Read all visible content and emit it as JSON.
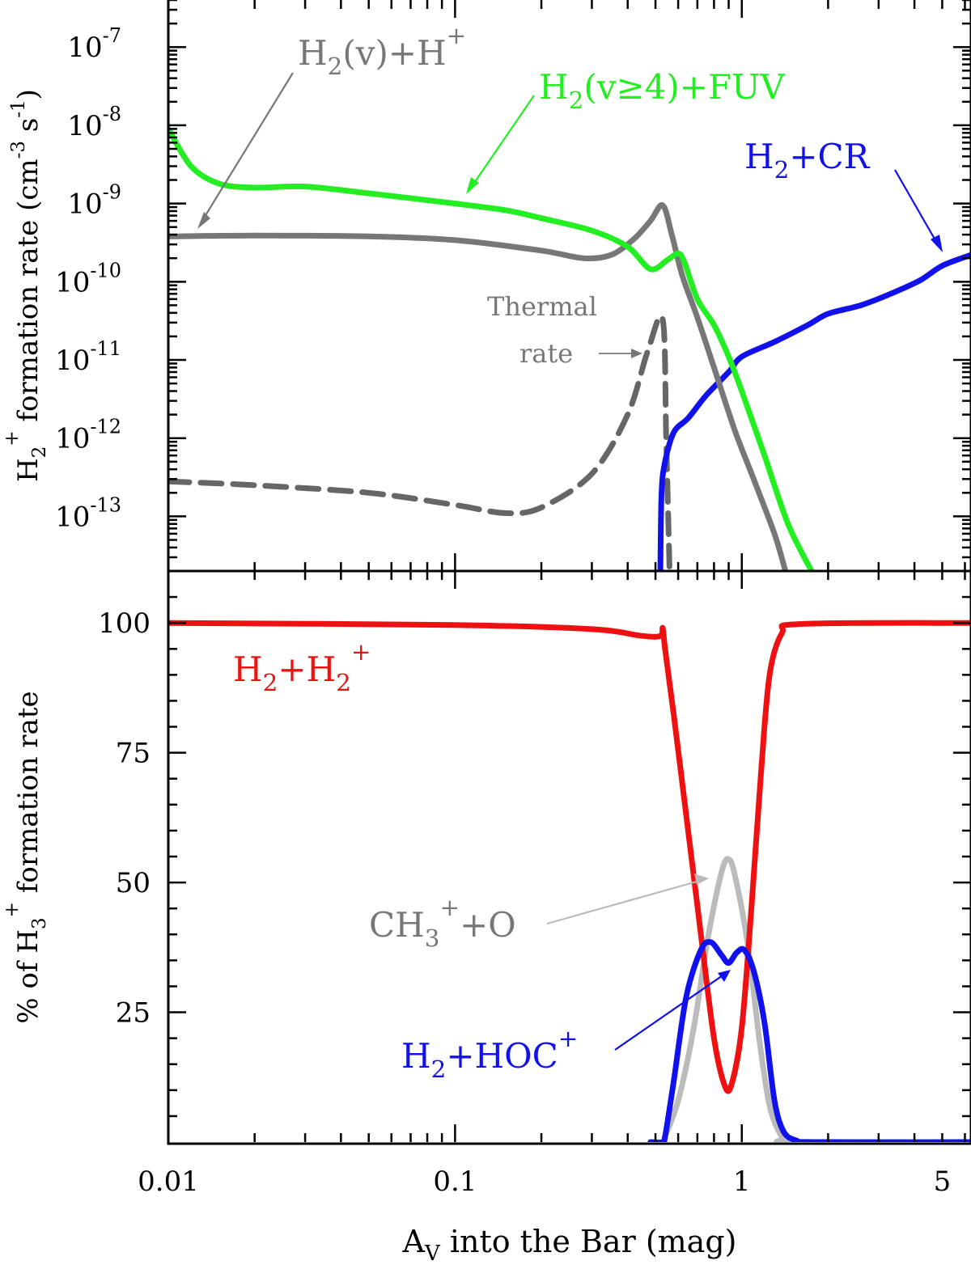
{
  "chart_data": [
    {
      "panel": "top",
      "type": "line",
      "ylabel_parts": [
        "H",
        "2",
        "+",
        " formation rate (cm",
        "-3",
        " s",
        "-1",
        ")"
      ],
      "yscale": "log",
      "ylim": [
        2e-14,
        4e-07
      ],
      "xscale": "log",
      "xlim": [
        0.01,
        6.3
      ],
      "ytick_exponents": [
        "-7",
        "-8",
        "-9",
        "-10",
        "-11",
        "-12",
        "-13"
      ],
      "ytick_values": [
        1e-07,
        1e-08,
        1e-09,
        1e-10,
        1e-11,
        1e-12,
        1e-13
      ],
      "series": [
        {
          "key": "h2v_hplus",
          "color": "#777777",
          "dash": "solid",
          "points": [
            [
              0.01,
              3.8e-10
            ],
            [
              0.02,
              3.9e-10
            ],
            [
              0.05,
              3.8e-10
            ],
            [
              0.1,
              3.4e-10
            ],
            [
              0.2,
              2.5e-10
            ],
            [
              0.28,
              2e-10
            ],
            [
              0.35,
              2.2e-10
            ],
            [
              0.42,
              3.5e-10
            ],
            [
              0.48,
              6e-10
            ],
            [
              0.53,
              9.5e-10
            ],
            [
              0.57,
              4e-10
            ],
            [
              0.62,
              1.2e-10
            ],
            [
              0.7,
              3.5e-11
            ],
            [
              0.8,
              8e-12
            ],
            [
              0.95,
              1.2e-12
            ],
            [
              1.1,
              3e-13
            ],
            [
              1.3,
              6e-14
            ],
            [
              1.42,
              2e-14
            ]
          ]
        },
        {
          "key": "h2v4_fuv",
          "color": "#22ee22",
          "dash": "solid",
          "points": [
            [
              0.01,
              9e-09
            ],
            [
              0.012,
              3e-09
            ],
            [
              0.015,
              1.8e-09
            ],
            [
              0.02,
              1.6e-09
            ],
            [
              0.03,
              1.65e-09
            ],
            [
              0.05,
              1.35e-09
            ],
            [
              0.1,
              1e-09
            ],
            [
              0.15,
              8.2e-10
            ],
            [
              0.2,
              6.5e-10
            ],
            [
              0.3,
              4.5e-10
            ],
            [
              0.4,
              2.8e-10
            ],
            [
              0.48,
              1.45e-10
            ],
            [
              0.55,
              1.9e-10
            ],
            [
              0.6,
              2.3e-10
            ],
            [
              0.63,
              1.8e-10
            ],
            [
              0.7,
              6e-11
            ],
            [
              0.8,
              2.8e-11
            ],
            [
              0.9,
              1.1e-11
            ],
            [
              1.0,
              4e-12
            ],
            [
              1.2,
              6e-13
            ],
            [
              1.45,
              8e-14
            ],
            [
              1.75,
              2e-14
            ]
          ]
        },
        {
          "key": "h2_cr",
          "color": "#1111ee",
          "dash": "solid",
          "points": [
            [
              0.52,
              2e-14
            ],
            [
              0.525,
              2e-13
            ],
            [
              0.54,
              5e-13
            ],
            [
              0.58,
              1.2e-12
            ],
            [
              0.65,
              1.8e-12
            ],
            [
              0.75,
              3.5e-12
            ],
            [
              0.9,
              7e-12
            ],
            [
              1.0,
              1.1e-11
            ],
            [
              1.3,
              1.7e-11
            ],
            [
              1.7,
              2.8e-11
            ],
            [
              2.0,
              3.9e-11
            ],
            [
              2.6,
              5e-11
            ],
            [
              3.3,
              7e-11
            ],
            [
              4.2,
              1.05e-10
            ],
            [
              5.0,
              1.6e-10
            ],
            [
              6.3,
              2.2e-10
            ]
          ]
        },
        {
          "key": "thermal",
          "color": "#666666",
          "dash": "dashed",
          "points": [
            [
              0.01,
              2.8e-13
            ],
            [
              0.02,
              2.5e-13
            ],
            [
              0.05,
              2e-13
            ],
            [
              0.1,
              1.4e-13
            ],
            [
              0.15,
              1.1e-13
            ],
            [
              0.2,
              1.3e-13
            ],
            [
              0.3,
              3.5e-13
            ],
            [
              0.4,
              2e-12
            ],
            [
              0.47,
              1.3e-11
            ],
            [
              0.53,
              3.3e-11
            ],
            [
              0.545,
              1e-12
            ],
            [
              0.56,
              2e-14
            ]
          ]
        }
      ],
      "annotations": [
        {
          "key": "h2v_hplus",
          "color": "#777777",
          "parts": [
            "H",
            "2",
            "(v)+H",
            "+"
          ]
        },
        {
          "key": "h2v4_fuv",
          "color": "#22ee22",
          "parts": [
            "H",
            "2",
            "(v≥4)+FUV"
          ]
        },
        {
          "key": "h2_cr",
          "color": "#1111ee",
          "parts": [
            "H",
            "2",
            "+CR"
          ]
        },
        {
          "key": "thermal1",
          "color": "#777777",
          "text": "Thermal"
        },
        {
          "key": "thermal2",
          "color": "#777777",
          "text": "rate"
        }
      ]
    },
    {
      "panel": "bottom",
      "type": "line",
      "ylabel_parts": [
        "% of H",
        "3",
        "+",
        " formation rate"
      ],
      "yscale": "linear",
      "ylim": [
        0,
        110
      ],
      "xscale": "log",
      "xlim": [
        0.01,
        6.3
      ],
      "ytick_labels": [
        "100",
        "75",
        "50",
        "25"
      ],
      "ytick_values": [
        100,
        75,
        50,
        25
      ],
      "xlabel_parts": [
        "A",
        "V",
        " into the Bar (mag)"
      ],
      "xtick_labels": [
        "0.01",
        "0.1",
        "1",
        "5"
      ],
      "xtick_values": [
        0.01,
        0.1,
        1,
        5
      ],
      "series": [
        {
          "key": "h2_h2plus",
          "color": "#ee1111",
          "points": [
            [
              0.01,
              100
            ],
            [
              0.1,
              99.6
            ],
            [
              0.3,
              98.8
            ],
            [
              0.45,
              97.5
            ],
            [
              0.52,
              97.5
            ],
            [
              0.53,
              99
            ],
            [
              0.54,
              95
            ],
            [
              0.58,
              82
            ],
            [
              0.65,
              60
            ],
            [
              0.72,
              40
            ],
            [
              0.8,
              20
            ],
            [
              0.87,
              11
            ],
            [
              0.92,
              11
            ],
            [
              1.0,
              22
            ],
            [
              1.08,
              45
            ],
            [
              1.17,
              72
            ],
            [
              1.25,
              90
            ],
            [
              1.38,
              98
            ],
            [
              1.6,
              99.8
            ],
            [
              6.3,
              100
            ]
          ]
        },
        {
          "key": "ch3_o",
          "color": "#bbbbbb",
          "points": [
            [
              0.53,
              0
            ],
            [
              0.6,
              8
            ],
            [
              0.68,
              22
            ],
            [
              0.76,
              39
            ],
            [
              0.85,
              52
            ],
            [
              0.9,
              54.5
            ],
            [
              0.95,
              51
            ],
            [
              1.05,
              38
            ],
            [
              1.15,
              20
            ],
            [
              1.25,
              7
            ],
            [
              1.38,
              1
            ],
            [
              1.5,
              0
            ],
            [
              6.3,
              0
            ]
          ]
        },
        {
          "key": "h2_hocplus",
          "color": "#1111ee",
          "points": [
            [
              0.48,
              0
            ],
            [
              0.53,
              0
            ],
            [
              0.54,
              1
            ],
            [
              0.58,
              12
            ],
            [
              0.64,
              28
            ],
            [
              0.72,
              37
            ],
            [
              0.78,
              38.5
            ],
            [
              0.85,
              36
            ],
            [
              0.9,
              34.5
            ],
            [
              0.96,
              36.5
            ],
            [
              1.02,
              37
            ],
            [
              1.1,
              33
            ],
            [
              1.2,
              23
            ],
            [
              1.3,
              8
            ],
            [
              1.4,
              2
            ],
            [
              1.55,
              0.3
            ],
            [
              1.8,
              0
            ],
            [
              6.3,
              0
            ]
          ]
        }
      ],
      "annotations": [
        {
          "key": "h2_h2plus",
          "color": "#ee1111",
          "parts": [
            "H",
            "2",
            "+H",
            "2",
            "+"
          ]
        },
        {
          "key": "ch3_o",
          "color": "#777777",
          "parts": [
            "CH",
            "3",
            "+",
            "+O"
          ]
        },
        {
          "key": "h2_hocplus",
          "color": "#1111ee",
          "parts": [
            "H",
            "2",
            "+HOC",
            "+"
          ]
        }
      ]
    }
  ]
}
